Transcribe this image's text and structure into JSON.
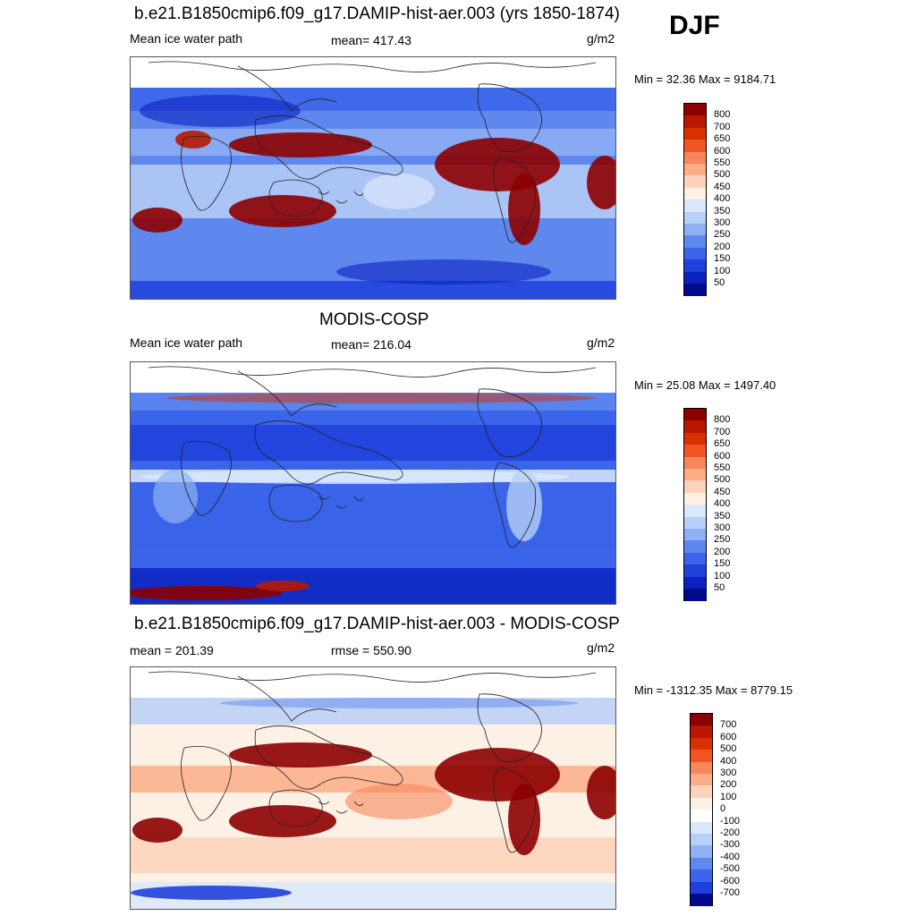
{
  "season": "DJF",
  "units": "g/m2",
  "panels": [
    {
      "title": "b.e21.B1850cmip6.f09_g17.DAMIP-hist-aer.003 (yrs 1850-1874)",
      "left_label": "Mean ice water path",
      "center_label": "mean= 417.43",
      "units": "g/m2",
      "minmax": "Min =  32.36 Max = 9184.71",
      "kind": "model"
    },
    {
      "title": "MODIS-COSP",
      "left_label": "Mean ice water path",
      "center_label": "mean= 216.04",
      "units": "g/m2",
      "minmax": "Min =  25.08 Max = 1497.40",
      "kind": "obs"
    },
    {
      "title": "b.e21.B1850cmip6.f09_g17.DAMIP-hist-aer.003 - MODIS-COSP",
      "left_label": "mean = 201.39",
      "center_label": "rmse = 550.90",
      "units": "g/m2",
      "minmax": "Min = -1312.35 Max = 8779.15",
      "kind": "diff"
    }
  ],
  "colorbar_main": {
    "labels": [
      "800",
      "700",
      "650",
      "600",
      "550",
      "500",
      "450",
      "400",
      "350",
      "300",
      "250",
      "200",
      "150",
      "100",
      "50"
    ],
    "colors": [
      "#8c0000",
      "#b81800",
      "#d83000",
      "#ee5522",
      "#f7875a",
      "#fbad88",
      "#fdd2ba",
      "#fdf0e4",
      "#dbe8fb",
      "#b8cff7",
      "#8fb0f4",
      "#5f88ef",
      "#3a64ea",
      "#1f40db",
      "#0c22c0",
      "#000a8a"
    ]
  },
  "colorbar_diff": {
    "labels": [
      "700",
      "600",
      "500",
      "400",
      "300",
      "200",
      "100",
      "0",
      "-100",
      "-200",
      "-300",
      "-400",
      "-500",
      "-600",
      "-700"
    ],
    "colors": [
      "#8c0000",
      "#b81800",
      "#d83000",
      "#ee5522",
      "#f7875a",
      "#fbad88",
      "#fdd2ba",
      "#fdf0e4",
      "#ffffff",
      "#dbe8fb",
      "#b8cff7",
      "#8fb0f4",
      "#5f88ef",
      "#3a64ea",
      "#1f40db",
      "#000a8a"
    ]
  }
}
